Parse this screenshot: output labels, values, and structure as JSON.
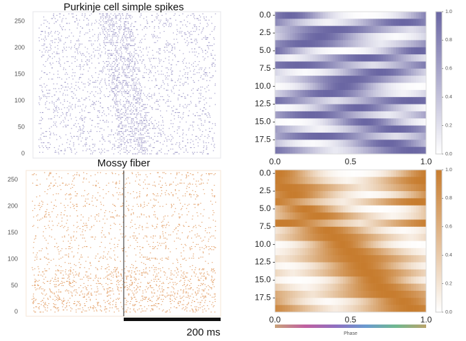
{
  "chart_data": [
    {
      "type": "scatter",
      "panel": "raster-purkinje",
      "title": "Purkinje cell simple spikes",
      "xlabel": "",
      "ylabel": "",
      "ylim": [
        -8,
        268
      ],
      "yticks": [
        0,
        50,
        100,
        150,
        200,
        250
      ],
      "marker_color": "#8c86bd",
      "grid": false
    },
    {
      "type": "heatmap",
      "panel": "heatmap-purkinje",
      "colormap": [
        "#ffffff",
        "#6a66a3"
      ],
      "rows": 20,
      "xlim": [
        0.0,
        1.0
      ],
      "ylim": [
        -0.5,
        19.5
      ],
      "yticks": [
        0.0,
        2.5,
        5.0,
        7.5,
        10.0,
        12.5,
        15.0,
        17.5
      ],
      "ytick_labels": [
        "0.0",
        "2.5",
        "5.0",
        "7.5",
        "10.0",
        "12.5",
        "15.0",
        "17.5"
      ],
      "xticks": [
        0.0,
        0.5,
        1.0
      ],
      "xtick_labels": [
        "0.0",
        "0.5",
        "1.0"
      ],
      "colorbar": {
        "range": [
          0.0,
          1.0
        ],
        "ticks": [
          "0.0",
          "0.2",
          "0.4",
          "0.6",
          "0.8",
          "1.0"
        ]
      },
      "peak_phase_by_row": [
        0.1,
        0.85,
        0.4,
        0.3,
        0.2,
        0.95,
        0.6,
        0.15,
        0.7,
        0.5,
        0.45,
        0.35,
        0.9,
        0.55,
        0.25,
        0.6,
        0.8,
        0.3,
        0.75,
        0.9
      ]
    },
    {
      "type": "scatter",
      "panel": "raster-mossy",
      "title": "Mossy fiber",
      "xlabel": "",
      "ylabel": "",
      "ylim": [
        -8,
        268
      ],
      "yticks": [
        0,
        50,
        100,
        150,
        200,
        250
      ],
      "marker_color": "#e0965a",
      "scale_bar_label": "200 ms",
      "grid": false
    },
    {
      "type": "heatmap",
      "panel": "heatmap-mossy",
      "colormap": [
        "#ffffff",
        "#c77c2e"
      ],
      "rows": 20,
      "xlim": [
        0.0,
        1.0
      ],
      "ylim": [
        -0.5,
        19.5
      ],
      "yticks": [
        0.0,
        2.5,
        5.0,
        7.5,
        10.0,
        12.5,
        15.0,
        17.5
      ],
      "ytick_labels": [
        "0.0",
        "2.5",
        "5.0",
        "7.5",
        "10.0",
        "12.5",
        "15.0",
        "17.5"
      ],
      "xticks": [
        0.0,
        0.5,
        1.0
      ],
      "xtick_labels": [
        "0.0",
        "0.5",
        "1.0"
      ],
      "xlabel": "Phase",
      "phase_colorbar": [
        "#c9a27a",
        "#c060a0",
        "#8f6fc0",
        "#6a9ad0",
        "#70b890",
        "#b9a36a"
      ],
      "colorbar": {
        "range": [
          0.0,
          1.0
        ],
        "ticks": [
          "0.0",
          "0.2",
          "0.4",
          "0.6",
          "0.8",
          "1.0"
        ]
      },
      "peak_phase_by_row": [
        0.02,
        0.98,
        0.08,
        0.12,
        0.95,
        0.2,
        0.28,
        0.06,
        0.35,
        0.4,
        0.45,
        0.5,
        0.55,
        0.58,
        0.62,
        0.66,
        0.7,
        0.75,
        0.85,
        0.9
      ]
    }
  ]
}
